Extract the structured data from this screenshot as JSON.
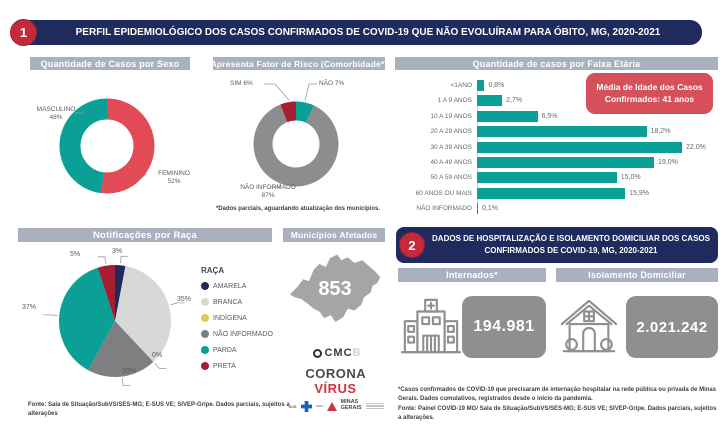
{
  "section1": {
    "badge": "1",
    "title": "PERFIL EPIDEMIOLÓGICO DOS CASOS CONFIRMADOS DE COVID-19 QUE NÃO EVOLUÍRAM PARA ÓBITO, MG, 2020-2021"
  },
  "section2": {
    "badge": "2",
    "title": "DADOS DE HOSPITALIZAÇÃO E ISOLAMENTO DOMICILIAR DOS CASOS CONFIRMADOS DE COVID-19, MG, 2020-2021"
  },
  "panels": {
    "sexo": {
      "title": "Quantidade de Casos por Sexo"
    },
    "comorbidade": {
      "title": "Apresenta Fator de Risco (Comorbidade*)",
      "footnote": "*Dados parciais, aguardando atualização dos municípios."
    },
    "faixa": {
      "title": "Quantidade de casos por Faixa Etária"
    },
    "raca": {
      "title": "Notificações por Raça"
    },
    "municipios": {
      "title": "Municípios Afetados",
      "count": "853"
    },
    "internados": {
      "title": "Internados*",
      "value": "194.981"
    },
    "isolamento": {
      "title": "Isolamento Domiciliar",
      "value": "2.021.242"
    }
  },
  "footnotes": {
    "left": "Fonte: Sala de Situação/SubVS/SES-MG; E-SUS VE; SIVEP-Gripe. Dados parciais, sujeitos a alterações",
    "right1": "*Casos confirmados de COVID-19 que precisaram de internação hospitalar na rede pública ou privada de Minas Gerais. Dados cumulativos, registrados desde o início da pandemia.",
    "right2": "Fonte: Painel COVID-19 MG/ Sala de Situação/SubVS/SES-MG; E-SUS VE; SIVEP-Gripe. Dados parciais, sujeitos a alterações."
  },
  "logos": {
    "cmc": "CMC",
    "cmc_suffix": "B",
    "corona_first": "CORONA",
    "corona_second": "VÍRUS",
    "sus": "SUS",
    "mg_line1": "MINAS",
    "mg_line2": "GERAIS"
  },
  "colors": {
    "navy": "#1e2b5c",
    "red_badge": "#c32b3d",
    "teal": "#0aa096",
    "red": "#e24a56",
    "dark_red": "#a81e31",
    "gray_header": "#a9b1bf",
    "gray_box": "#8f8f92",
    "map_gray": "#a5a5a8"
  },
  "chart_data": [
    {
      "type": "pie",
      "subtype": "donut",
      "title": "Quantidade de Casos por Sexo",
      "labels": [
        "FEMININO",
        "MASCULINO"
      ],
      "values": [
        52,
        48
      ],
      "display": [
        "52%",
        "48%"
      ],
      "colors": [
        "#e24a56",
        "#0aa096"
      ]
    },
    {
      "type": "pie",
      "subtype": "donut",
      "title": "Apresenta Fator de Risco (Comorbidade*)",
      "labels": [
        "NÃO",
        "NÃO INFORMADO",
        "SIM"
      ],
      "values": [
        7,
        87,
        6
      ],
      "display": [
        "7%",
        "87%",
        "6%"
      ],
      "colors": [
        "#0aa096",
        "#8d8d90",
        "#a81e31"
      ]
    },
    {
      "type": "bar",
      "orientation": "horizontal",
      "title": "Quantidade de casos por Faixa Etária",
      "categories": [
        "<1ANO",
        "1 A 9 ANOS",
        "10 A 19 ANOS",
        "20 A 29 ANOS",
        "30 A 39 ANOS",
        "40 A 49 ANOS",
        "50 A 59 ANOS",
        "60 ANOS OU MAIS",
        "NÃO INFORMADO"
      ],
      "values": [
        0.8,
        2.7,
        6.5,
        18.2,
        22.0,
        19.0,
        15.0,
        15.9,
        0.1
      ],
      "value_labels": [
        "0,8%",
        "2,7%",
        "6,5%",
        "18,2%",
        "22,0%",
        "19,0%",
        "15,0%",
        "15,9%",
        "0,1%"
      ],
      "xlim": [
        0,
        22
      ],
      "bar_color": "#0aa096",
      "annotation": "Média de Idade dos Casos Confirmados: 41 anos"
    },
    {
      "type": "pie",
      "title": "Notificações por Raça",
      "legend_title": "RAÇA",
      "legend_position": "right",
      "labels": [
        "AMARELA",
        "BRANCA",
        "INDÍGENA",
        "NÃO INFORMADO",
        "PARDA",
        "PRETA"
      ],
      "values": [
        3,
        35,
        0,
        20,
        37,
        5
      ],
      "display": [
        "3%",
        "35%",
        "0%",
        "20%",
        "37%",
        "5%"
      ],
      "colors": [
        "#1e2b5c",
        "#d8d8d8",
        "#e3c84b",
        "#7f7f82",
        "#0aa096",
        "#a81e31"
      ]
    }
  ]
}
